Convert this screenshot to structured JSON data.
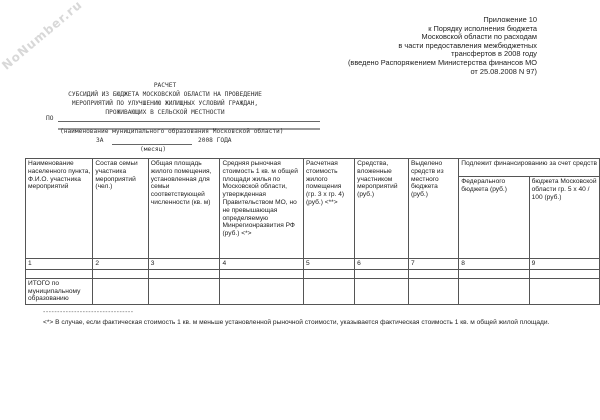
{
  "watermark": "NoNumber.ru",
  "appendix": [
    "Приложение 10",
    "к Порядку исполнения бюджета",
    "Московской области по расходам",
    "в части предоставления межбюджетных",
    "трансфертов в 2008 году",
    "(введено Распоряжением Министерства финансов МО",
    "от 25.08.2008 N 97)"
  ],
  "title": [
    "РАСЧЕТ",
    "СУБСИДИЙ ИЗ БЮДЖЕТА МОСКОВСКОЙ ОБЛАСТИ НА ПРОВЕДЕНИЕ",
    "МЕРОПРИЯТИЙ ПО УЛУЧШЕНИЮ ЖИЛИЩНЫХ УСЛОВИЙ ГРАЖДАН,",
    "ПРОЖИВАЮЩИХ В СЕЛЬСКОЙ МЕСТНОСТИ"
  ],
  "po_label": "ПО",
  "municipality_caption": "(наименование муниципального образования Московской области)",
  "za_label": "ЗА",
  "year_label": "2008 ГОДА",
  "month_caption": "(месяц)",
  "table": {
    "headers": [
      "Наименование населенного пункта, Ф.И.О. участника мероприятий",
      "Состав семьи участника мероприятий (чел.)",
      "Общая площадь жилого помещения, установленная для семьи соответствующей численности (кв. м)",
      "Средняя рыночная стоимость 1 кв. м общей площади жилья по Московской области, утвержденная Правительством МО, но не превышающая определяемую Минрегионразвития РФ (руб.) <*>",
      "Расчетная стоимость жилого помещения (гр. 3 x гр. 4) (руб.) <**>",
      "Средства, вложенные участником мероприятий (руб.)",
      "Выделено средств из местного бюджета (руб.)"
    ],
    "group_header": "Подлежит финансированию за счет средств",
    "sub_headers": [
      "Федерального бюджета (руб.)",
      "бюджета Московской области гр. 5 x 40 / 100 (руб.)"
    ],
    "numbers": [
      "1",
      "2",
      "3",
      "4",
      "5",
      "6",
      "7",
      "8",
      "9"
    ],
    "total_label": "ИТОГО по муниципальному образованию"
  },
  "footnote_separator": "--------------------------------",
  "footnote": "<*> В случае, если фактическая стоимость 1 кв. м меньше установленной рыночной стоимости, указывается фактическая стоимость 1 кв. м общей жилой площади."
}
